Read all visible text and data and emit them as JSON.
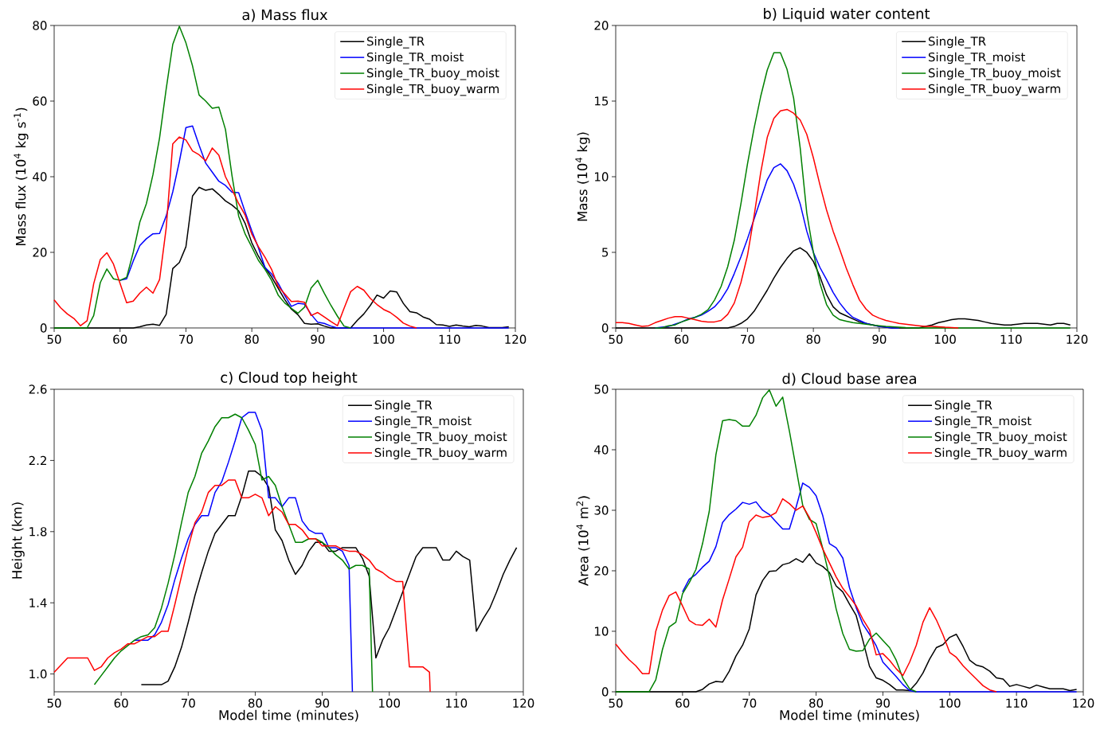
{
  "chart_data": [
    {
      "type": "line",
      "title": "a) Mass flux",
      "ylabel": "Mass flux (10$^{4}$ kg s$^{-1}$)",
      "xlim": [
        50,
        120
      ],
      "xticks": [
        50,
        60,
        70,
        80,
        90,
        100,
        110,
        120
      ],
      "ylim": [
        0,
        80
      ],
      "yticks": [
        0,
        20,
        40,
        60,
        80
      ],
      "legend": "top right",
      "series": [
        {
          "name": "Single_TR",
          "color": "#000000",
          "x": [
            50,
            62,
            63,
            64,
            65,
            66,
            67,
            68,
            69,
            70,
            71,
            72,
            73,
            74,
            75,
            76,
            77,
            78,
            79,
            80,
            81,
            82,
            83,
            84,
            85,
            86,
            87,
            88,
            89,
            90,
            91,
            92,
            95,
            96,
            97,
            98,
            99,
            100,
            101,
            102,
            103,
            104,
            105,
            106,
            107,
            108,
            109,
            110,
            111,
            112,
            113,
            114,
            115,
            116,
            118,
            119
          ],
          "values": [
            0,
            0,
            0.3,
            0.8,
            1,
            0.7,
            3.6,
            15.7,
            17.3,
            21.5,
            34.9,
            37.2,
            36.4,
            36.8,
            35.3,
            33.6,
            32.5,
            31,
            27.6,
            22.5,
            19,
            16,
            13.5,
            10.5,
            7.5,
            5,
            3.5,
            1.2,
            1,
            1.1,
            0.5,
            0,
            0,
            2,
            3.7,
            6,
            8.7,
            7.9,
            9.8,
            9.5,
            6.5,
            4.3,
            4,
            2.9,
            2.3,
            0.9,
            0.8,
            0.4,
            0.8,
            0.5,
            0.3,
            0.7,
            0.5,
            0.1,
            0.1,
            0.3
          ]
        },
        {
          "name": "Single_TR_moist",
          "color": "#0000ff",
          "x": [
            60,
            61,
            62,
            63,
            64,
            65,
            66,
            67,
            68,
            69,
            70,
            71,
            72,
            73,
            74,
            75,
            76,
            77,
            78,
            79,
            80,
            81,
            82,
            83,
            84,
            85,
            86,
            87,
            88,
            89,
            90,
            91,
            92,
            93,
            119
          ],
          "values": [
            12.6,
            13,
            17.7,
            21.8,
            23.6,
            24.9,
            25,
            29.6,
            36,
            44,
            53,
            53.4,
            48.3,
            43.6,
            41.2,
            38.8,
            37.7,
            35.9,
            35.8,
            30.6,
            25.7,
            21.2,
            16,
            14.3,
            11.8,
            8.6,
            5.7,
            6.5,
            6.3,
            3.6,
            1.5,
            1.2,
            0.5,
            0,
            0
          ]
        },
        {
          "name": "Single_TR_buoy_moist",
          "color": "#008000",
          "x": [
            50,
            55,
            56,
            57,
            58,
            59,
            60,
            61,
            62,
            63,
            64,
            65,
            66,
            67,
            68,
            69,
            70,
            71,
            72,
            73,
            74,
            75,
            76,
            77,
            78,
            79,
            80,
            81,
            82,
            83,
            84,
            85,
            86,
            87,
            88,
            89,
            90,
            91,
            92,
            93,
            94,
            95
          ],
          "values": [
            0,
            0,
            3.3,
            12,
            15.6,
            13,
            12.6,
            13.4,
            20,
            28,
            32.9,
            40.6,
            50.3,
            63.2,
            75,
            79.8,
            75.4,
            69.3,
            61.6,
            60,
            58.1,
            58.4,
            52.5,
            40.2,
            29.6,
            24.8,
            21.4,
            17.9,
            15.5,
            12.6,
            8.7,
            6.6,
            5.2,
            3.9,
            5.5,
            10.6,
            12.6,
            9.2,
            6,
            3.1,
            0.5,
            0
          ]
        },
        {
          "name": "Single_TR_buoy_warm",
          "color": "#ff0000",
          "x": [
            50,
            51,
            52,
            53,
            54,
            55,
            56,
            57,
            58,
            59,
            60,
            61,
            62,
            63,
            64,
            65,
            66,
            67,
            68,
            69,
            70,
            71,
            72,
            73,
            74,
            75,
            76,
            77,
            78,
            79,
            80,
            81,
            82,
            83,
            84,
            85,
            86,
            87,
            88,
            89,
            90,
            91,
            92,
            93,
            94,
            95,
            96,
            97,
            98,
            99,
            100,
            101,
            102,
            103,
            104,
            105
          ],
          "values": [
            7.4,
            5.3,
            3.7,
            2.5,
            0.6,
            1.9,
            11.7,
            18.1,
            19.9,
            16.9,
            11.8,
            6.7,
            7.1,
            9.2,
            10.8,
            9.2,
            12.8,
            26.4,
            48.7,
            50.5,
            49.7,
            46.8,
            45.8,
            44.2,
            47.6,
            45.7,
            40,
            36.6,
            32.9,
            29.8,
            24.8,
            21.5,
            18.7,
            15.5,
            11,
            9,
            7,
            7.1,
            6.8,
            3.3,
            4.1,
            2.9,
            1.7,
            0.6,
            5.2,
            9.6,
            11,
            10,
            7.8,
            6.2,
            4.9,
            4.1,
            2.8,
            1.3,
            0.5,
            0
          ]
        }
      ]
    },
    {
      "type": "line",
      "title": "b) Liquid water content",
      "ylabel": "Mass (10$^{4}$ kg)",
      "xlim": [
        50,
        120
      ],
      "xticks": [
        50,
        60,
        70,
        80,
        90,
        100,
        110,
        120
      ],
      "ylim": [
        0,
        20
      ],
      "yticks": [
        0,
        5,
        10,
        15,
        20
      ],
      "legend": "top right",
      "series": [
        {
          "name": "Single_TR",
          "color": "#000000",
          "x": [
            50,
            66,
            67,
            68,
            69,
            70,
            71,
            72,
            73,
            74,
            75,
            76,
            77,
            78,
            79,
            80,
            81,
            82,
            83,
            84,
            85,
            86,
            87,
            88,
            89,
            90,
            91,
            92,
            93,
            94,
            95,
            96,
            97,
            98,
            99,
            100,
            101,
            102,
            103,
            104,
            105,
            106,
            107,
            108,
            109,
            110,
            111,
            112,
            113,
            114,
            115,
            116,
            117,
            118,
            119
          ],
          "values": [
            0,
            0,
            0,
            0.1,
            0.3,
            0.6,
            1.1,
            1.8,
            2.5,
            3.3,
            4,
            4.6,
            5.1,
            5.3,
            5,
            4.4,
            3.4,
            2.2,
            1.4,
            1,
            0.8,
            0.6,
            0.4,
            0.3,
            0.2,
            0.1,
            0.05,
            0,
            0,
            0,
            0,
            0,
            0.1,
            0.2,
            0.35,
            0.45,
            0.55,
            0.6,
            0.6,
            0.55,
            0.5,
            0.4,
            0.3,
            0.25,
            0.2,
            0.2,
            0.25,
            0.3,
            0.3,
            0.3,
            0.25,
            0.2,
            0.3,
            0.3,
            0.2
          ]
        },
        {
          "name": "Single_TR_moist",
          "color": "#0000ff",
          "x": [
            56,
            57,
            58,
            59,
            60,
            61,
            62,
            63,
            64,
            65,
            66,
            67,
            68,
            69,
            70,
            71,
            72,
            73,
            74,
            75,
            76,
            77,
            78,
            79,
            80,
            81,
            82,
            83,
            84,
            85,
            86,
            87,
            88,
            89,
            90,
            91,
            92,
            93
          ],
          "values": [
            0,
            0.05,
            0.1,
            0.25,
            0.4,
            0.6,
            0.7,
            0.85,
            1.1,
            1.4,
            1.9,
            2.6,
            3.6,
            4.7,
            5.9,
            7.2,
            8.5,
            9.8,
            10.6,
            10.85,
            10.4,
            9.5,
            8.2,
            6.4,
            5,
            4,
            3.2,
            2.35,
            1.65,
            1.1,
            0.7,
            0.5,
            0.3,
            0.2,
            0.1,
            0.05,
            0,
            0
          ]
        },
        {
          "name": "Single_TR_buoy_moist",
          "color": "#008000",
          "x": [
            56,
            57,
            58,
            59,
            60,
            61,
            62,
            63,
            64,
            65,
            66,
            67,
            68,
            69,
            70,
            71,
            72,
            73,
            74,
            75,
            76,
            77,
            78,
            79,
            80,
            81,
            82,
            83,
            84,
            85,
            86,
            87,
            88,
            89,
            90,
            91,
            92,
            93,
            94,
            95,
            119
          ],
          "values": [
            0,
            0,
            0.15,
            0.2,
            0.4,
            0.55,
            0.7,
            0.9,
            1.2,
            1.85,
            2.75,
            4.05,
            5.8,
            8.2,
            10.85,
            13.2,
            15.3,
            17.05,
            18.2,
            18.2,
            17.1,
            15.2,
            11.9,
            7.6,
            5,
            2.95,
            1.55,
            0.85,
            0.55,
            0.45,
            0.35,
            0.3,
            0.25,
            0.2,
            0.15,
            0.1,
            0.08,
            0.05,
            0.02,
            0,
            0
          ]
        },
        {
          "name": "Single_TR_buoy_warm",
          "color": "#ff0000",
          "x": [
            50,
            51,
            52,
            53,
            54,
            55,
            56,
            57,
            58,
            59,
            60,
            61,
            62,
            63,
            64,
            65,
            66,
            67,
            68,
            69,
            70,
            71,
            72,
            73,
            74,
            75,
            76,
            77,
            78,
            79,
            80,
            81,
            82,
            83,
            84,
            85,
            86,
            87,
            88,
            89,
            90,
            91,
            92,
            93,
            94,
            95,
            96,
            97,
            98,
            99,
            100,
            101,
            102
          ],
          "values": [
            0.35,
            0.35,
            0.3,
            0.2,
            0.1,
            0.15,
            0.35,
            0.5,
            0.65,
            0.75,
            0.75,
            0.65,
            0.55,
            0.45,
            0.4,
            0.4,
            0.5,
            0.9,
            1.65,
            3,
            4.8,
            7.4,
            10.25,
            12.6,
            13.85,
            14.35,
            14.45,
            14.2,
            13.75,
            12.8,
            11.25,
            9.45,
            7.8,
            6.4,
            5.2,
            3.95,
            2.85,
            1.85,
            1.25,
            0.85,
            0.65,
            0.5,
            0.4,
            0.3,
            0.25,
            0.2,
            0.15,
            0.1,
            0.1,
            0.08,
            0.05,
            0.03,
            0
          ]
        }
      ]
    },
    {
      "type": "line",
      "title": "c) Cloud top height",
      "xlabel": "Model time (minutes)",
      "ylabel": "Height (km)",
      "xlim": [
        50,
        120
      ],
      "xticks": [
        50,
        60,
        70,
        80,
        90,
        100,
        110,
        120
      ],
      "ylim": [
        0.9,
        2.6
      ],
      "yticks": [
        {
          "value": 1,
          "label": "1.0"
        },
        1.4,
        1.8,
        2.2,
        2.6
      ],
      "legend": "top right",
      "series": [
        {
          "name": "Single_TR",
          "color": "#000000",
          "x": [
            63,
            64,
            65,
            66,
            67,
            68,
            69,
            70,
            71,
            72,
            73,
            74,
            75,
            76,
            77,
            78,
            79,
            80,
            81,
            82,
            83,
            84,
            85,
            86,
            87,
            88,
            89,
            90,
            91,
            92,
            93,
            94,
            95,
            96,
            97,
            98,
            99,
            100,
            101,
            102,
            103,
            104,
            105,
            106,
            107,
            108,
            109,
            110,
            111,
            112,
            113,
            114,
            115,
            116,
            117,
            118,
            119
          ],
          "values": [
            0.94,
            0.94,
            0.94,
            0.94,
            0.96,
            1.04,
            1.15,
            1.29,
            1.44,
            1.57,
            1.69,
            1.79,
            1.84,
            1.89,
            1.89,
            2.0,
            2.14,
            2.14,
            2.11,
            2.05,
            1.81,
            1.75,
            1.64,
            1.56,
            1.61,
            1.69,
            1.74,
            1.74,
            1.69,
            1.69,
            1.71,
            1.71,
            1.71,
            1.65,
            1.55,
            1.09,
            1.19,
            1.26,
            1.36,
            1.46,
            1.56,
            1.66,
            1.71,
            1.71,
            1.71,
            1.64,
            1.64,
            1.69,
            1.66,
            1.64,
            1.24,
            1.31,
            1.37,
            1.46,
            1.56,
            1.64,
            1.71
          ]
        },
        {
          "name": "Single_TR_moist",
          "color": "#0000ff",
          "x": [
            62,
            63,
            64,
            65,
            66,
            67,
            68,
            69,
            70,
            71,
            72,
            73,
            74,
            75,
            76,
            77,
            78,
            79,
            80,
            81,
            82,
            83,
            84,
            85,
            86,
            87,
            88,
            89,
            90,
            91,
            92,
            93,
            94,
            94.5
          ],
          "values": [
            1.19,
            1.19,
            1.19,
            1.22,
            1.29,
            1.39,
            1.53,
            1.65,
            1.76,
            1.84,
            1.89,
            1.89,
            2.02,
            2.08,
            2.19,
            2.31,
            2.44,
            2.47,
            2.47,
            2.37,
            1.99,
            1.99,
            1.94,
            1.99,
            1.99,
            1.86,
            1.81,
            1.79,
            1.79,
            1.71,
            1.71,
            1.69,
            1.61,
            0.9
          ]
        },
        {
          "name": "Single_TR_buoy_moist",
          "color": "#008000",
          "x": [
            56,
            57,
            58,
            59,
            60,
            61,
            62,
            63,
            64,
            65,
            66,
            67,
            68,
            69,
            70,
            71,
            72,
            73,
            74,
            75,
            76,
            77,
            78,
            79,
            80,
            81,
            82,
            83,
            84,
            85,
            86,
            87,
            88,
            89,
            90,
            91,
            92,
            93,
            94,
            95,
            96,
            97,
            97.5
          ],
          "values": [
            0.94,
            0.99,
            1.04,
            1.09,
            1.13,
            1.16,
            1.19,
            1.21,
            1.22,
            1.26,
            1.37,
            1.51,
            1.67,
            1.85,
            2.02,
            2.11,
            2.24,
            2.31,
            2.39,
            2.44,
            2.44,
            2.46,
            2.44,
            2.37,
            2.29,
            2.09,
            2.11,
            2.06,
            1.94,
            1.84,
            1.74,
            1.74,
            1.76,
            1.76,
            1.74,
            1.71,
            1.67,
            1.64,
            1.59,
            1.61,
            1.61,
            1.59,
            0.9
          ]
        },
        {
          "name": "Single_TR_buoy_warm",
          "color": "#ff0000",
          "x": [
            50,
            51,
            52,
            53,
            54,
            55,
            56,
            57,
            58,
            59,
            60,
            61,
            62,
            63,
            64,
            65,
            66,
            67,
            68,
            69,
            70,
            71,
            72,
            73,
            74,
            75,
            76,
            77,
            78,
            79,
            80,
            81,
            82,
            83,
            84,
            85,
            86,
            87,
            88,
            89,
            90,
            91,
            92,
            93,
            94,
            95,
            96,
            97,
            98,
            99,
            100,
            101,
            102,
            103,
            104,
            105,
            106,
            106.1
          ],
          "values": [
            1.01,
            1.05,
            1.09,
            1.09,
            1.09,
            1.09,
            1.02,
            1.04,
            1.09,
            1.12,
            1.14,
            1.17,
            1.17,
            1.19,
            1.21,
            1.21,
            1.24,
            1.24,
            1.39,
            1.55,
            1.71,
            1.85,
            1.91,
            2.02,
            2.06,
            2.06,
            2.09,
            2.09,
            1.99,
            1.99,
            2.01,
            1.99,
            1.89,
            1.94,
            1.91,
            1.84,
            1.84,
            1.81,
            1.76,
            1.76,
            1.72,
            1.72,
            1.72,
            1.7,
            1.69,
            1.69,
            1.67,
            1.64,
            1.59,
            1.57,
            1.54,
            1.52,
            1.52,
            1.04,
            1.04,
            1.04,
            1.01,
            0.9
          ]
        }
      ]
    },
    {
      "type": "line",
      "title": "d) Cloud base area",
      "xlabel": "Model time (minutes)",
      "ylabel": "Area (10$^{4}$ m$^{2}$)",
      "xlim": [
        50,
        120
      ],
      "xticks": [
        50,
        60,
        70,
        80,
        90,
        100,
        110,
        120
      ],
      "ylim": [
        0,
        50
      ],
      "yticks": [
        0,
        10,
        20,
        30,
        40,
        50
      ],
      "legend": "top right",
      "series": [
        {
          "name": "Single_TR",
          "color": "#000000",
          "x": [
            50,
            62,
            63,
            64,
            65,
            66,
            67,
            68,
            69,
            70,
            71,
            72,
            73,
            74,
            75,
            76,
            77,
            78,
            79,
            80,
            81,
            82,
            83,
            84,
            85,
            86,
            87,
            88,
            89,
            90,
            91,
            92,
            93,
            94,
            95,
            96,
            97,
            98,
            99,
            100,
            101,
            102,
            103,
            104,
            105,
            106,
            107,
            108,
            109,
            110,
            111,
            112,
            113,
            114,
            115,
            116,
            117,
            118,
            119
          ],
          "values": [
            0,
            0,
            0.4,
            1.3,
            1.7,
            1.6,
            3.4,
            5.9,
            7.7,
            10.4,
            16,
            18.4,
            19.9,
            20,
            21,
            21.3,
            22,
            21.4,
            22.8,
            21.3,
            20.7,
            19.7,
            17.5,
            16.5,
            14.5,
            12.6,
            8.5,
            4.2,
            2.3,
            1.9,
            1.2,
            0.3,
            0.3,
            0.2,
            1.4,
            3.1,
            5.4,
            7.3,
            7.8,
            9,
            9.5,
            7.5,
            5.2,
            4.4,
            4.1,
            3.4,
            2.3,
            2.1,
            0.9,
            1.2,
            0.9,
            0.6,
            1.1,
            0.8,
            0.5,
            0.5,
            0.5,
            0.2,
            0.4
          ]
        },
        {
          "name": "Single_TR_moist",
          "color": "#0000ff",
          "x": [
            60,
            61,
            62,
            63,
            64,
            65,
            66,
            67,
            68,
            69,
            70,
            71,
            72,
            73,
            74,
            75,
            76,
            77,
            78,
            79,
            80,
            81,
            82,
            83,
            84,
            85,
            86,
            87,
            88,
            89,
            90,
            91,
            92,
            93,
            94,
            95,
            119
          ],
          "values": [
            16.5,
            18.6,
            19.4,
            20.6,
            21.6,
            24,
            28,
            29.3,
            30.2,
            31.3,
            31,
            31.4,
            30,
            29.3,
            28.1,
            26.9,
            26.9,
            30.5,
            34.5,
            33.8,
            32.4,
            29.1,
            24.5,
            23.8,
            22.1,
            17.2,
            13.9,
            11.2,
            9.5,
            7.6,
            4.9,
            3.7,
            2.5,
            1.2,
            0.2,
            0,
            0
          ]
        },
        {
          "name": "Single_TR_buoy_moist",
          "color": "#008000",
          "x": [
            50,
            55,
            56,
            57,
            58,
            59,
            60,
            61,
            62,
            63,
            64,
            65,
            66,
            67,
            68,
            69,
            70,
            71,
            72,
            73,
            74,
            75,
            76,
            77,
            78,
            79,
            80,
            81,
            82,
            83,
            84,
            85,
            86,
            87,
            88,
            89,
            90,
            91,
            92,
            93,
            94,
            95
          ],
          "values": [
            0,
            0,
            2,
            7,
            10.7,
            11.5,
            16.2,
            18,
            20.2,
            24.5,
            29.8,
            39.2,
            44.8,
            45,
            44.8,
            43.9,
            43.9,
            45.7,
            48.6,
            49.9,
            47.2,
            48.7,
            43.1,
            37,
            30.8,
            28.5,
            27.8,
            23.7,
            19,
            13.7,
            9.6,
            7,
            6.7,
            6.8,
            8.7,
            9.7,
            8.5,
            7.3,
            5.2,
            2.2,
            0.5,
            0
          ]
        },
        {
          "name": "Single_TR_buoy_warm",
          "color": "#ff0000",
          "x": [
            50,
            51,
            52,
            53,
            54,
            55,
            56,
            57,
            58,
            59,
            60,
            61,
            62,
            63,
            64,
            65,
            66,
            67,
            68,
            69,
            70,
            71,
            72,
            73,
            74,
            75,
            76,
            77,
            78,
            79,
            80,
            81,
            82,
            83,
            84,
            85,
            86,
            87,
            88,
            89,
            90,
            91,
            92,
            93,
            94,
            95,
            96,
            97,
            98,
            99,
            100,
            101,
            102,
            103,
            104,
            105,
            106,
            107
          ],
          "values": [
            7.9,
            6.5,
            5.3,
            4.3,
            3,
            3,
            10,
            13.5,
            15.9,
            16.5,
            14.2,
            11.8,
            11.1,
            11,
            12,
            10.7,
            15.2,
            18.7,
            22.3,
            23.9,
            28.1,
            29.2,
            28.8,
            29,
            29.6,
            31.9,
            31.1,
            30,
            30.7,
            28.8,
            26.3,
            23.6,
            21.3,
            19,
            17.1,
            15.7,
            14.2,
            12,
            10.2,
            6.1,
            6.3,
            5.2,
            3.8,
            2.7,
            4.9,
            7.7,
            11.5,
            13.9,
            11.9,
            9.4,
            6.5,
            5.7,
            4.3,
            3.2,
            2.1,
            1,
            0.3,
            0
          ]
        }
      ]
    }
  ]
}
